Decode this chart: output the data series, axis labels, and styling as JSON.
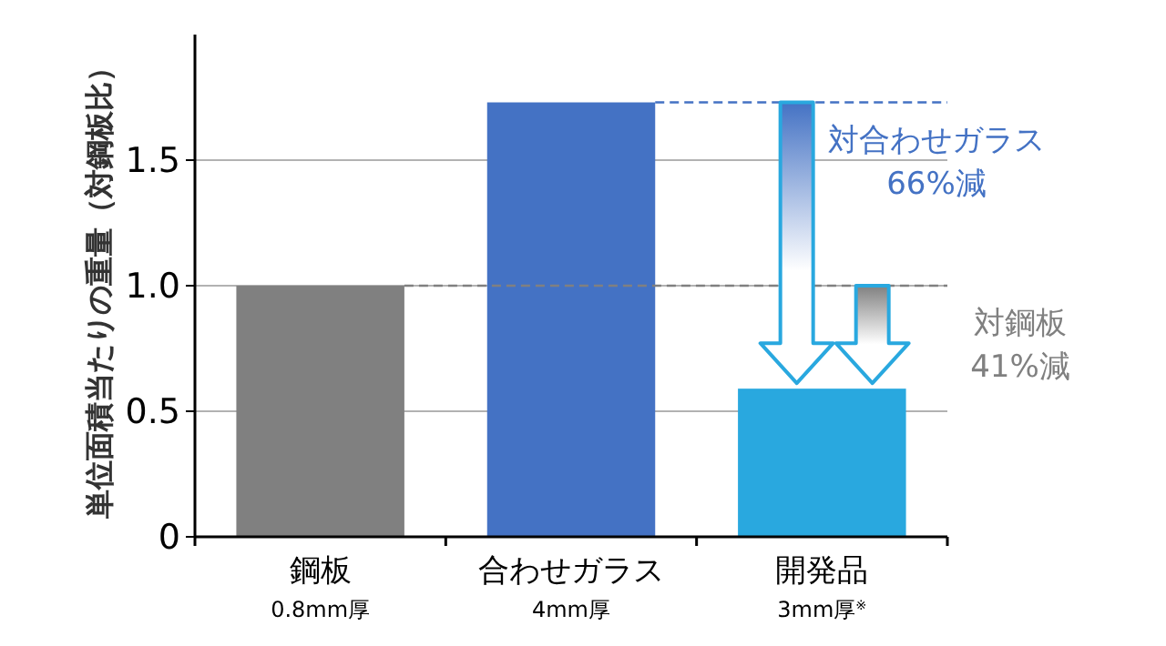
{
  "chart_data": {
    "type": "bar",
    "ylabel": "単位面積当たりの重量（対鋼板比）",
    "categories": [
      "鋼板\n0.8mm厚",
      "合わせガラス\n4mm厚",
      "開発品\n3mm厚$^{※}$"
    ],
    "values": [
      1.0,
      1.73,
      0.59
    ],
    "colors": [
      "#808080",
      "#4472c4",
      "#29a8df"
    ],
    "ylim": [
      0,
      2
    ],
    "yticks": [
      {
        "value": 0,
        "label": "0"
      },
      0.5,
      {
        "value": 1,
        "label": "1.0"
      },
      1.5
    ],
    "grid": "y",
    "ref_lines": [
      {
        "axis": "y",
        "value": 1.73,
        "label": "対合わせガラス\n66%減",
        "color": "#4472c4",
        "line_style": "dashed"
      },
      {
        "axis": "y",
        "value": 1.0,
        "label": "対鋼板\n41%減",
        "color": "#808080",
        "line_style": "dashed"
      }
    ]
  }
}
